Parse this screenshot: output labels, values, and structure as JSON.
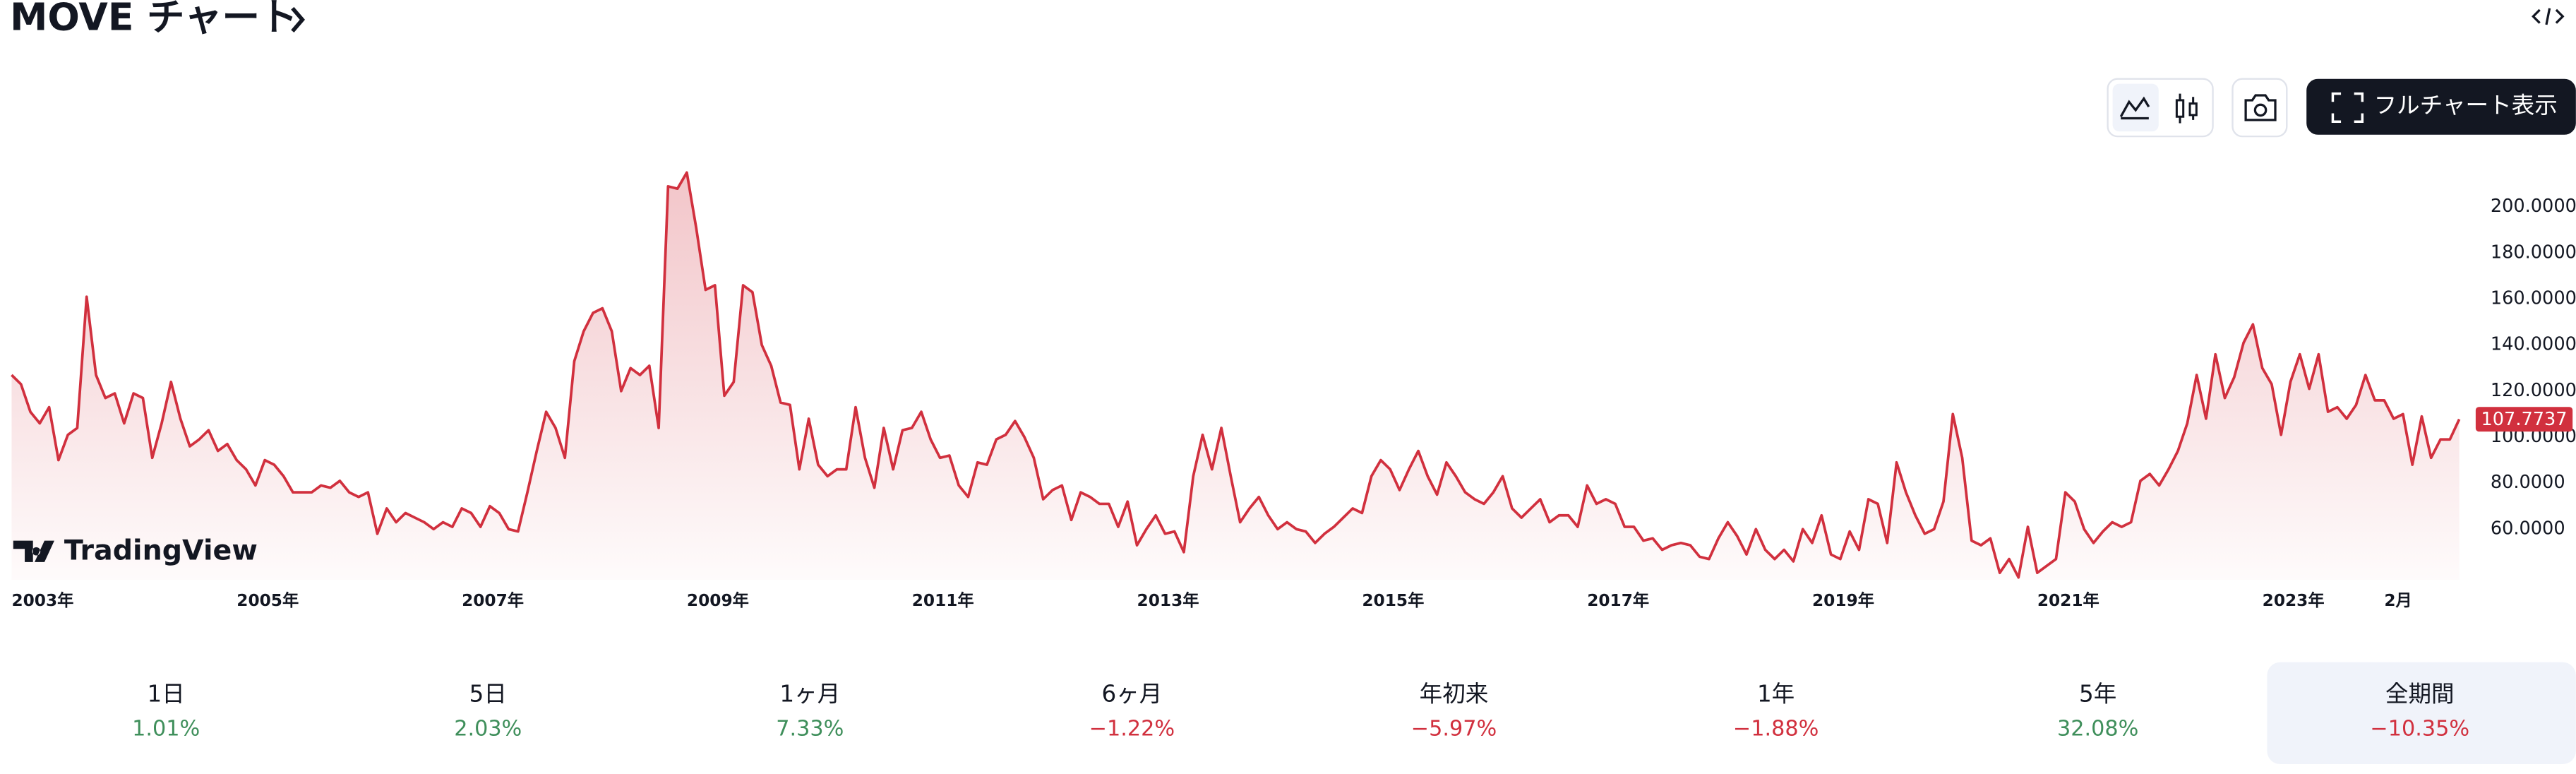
{
  "header": {
    "title": "MOVE チャート",
    "full_chart_button": "フルチャート表示",
    "logo": "TradingView"
  },
  "chart_data": {
    "type": "area",
    "categories": [
      "2003年",
      null,
      null,
      null,
      null,
      null,
      null,
      null,
      null,
      null,
      null,
      null,
      null,
      null,
      null,
      null,
      null,
      null,
      null,
      null,
      null,
      null,
      null,
      null,
      "2005年",
      null,
      null,
      null,
      null,
      null,
      null,
      null,
      null,
      null,
      null,
      null,
      null,
      null,
      null,
      null,
      null,
      null,
      null,
      null,
      null,
      null,
      null,
      null,
      "2007年",
      null,
      null,
      null,
      null,
      null,
      null,
      null,
      null,
      null,
      null,
      null,
      null,
      null,
      null,
      null,
      null,
      null,
      null,
      null,
      null,
      null,
      null,
      null,
      "2009年",
      null,
      null,
      null,
      null,
      null,
      null,
      null,
      null,
      null,
      null,
      null,
      null,
      null,
      null,
      null,
      null,
      null,
      null,
      null,
      null,
      null,
      null,
      null,
      "2011年",
      null,
      null,
      null,
      null,
      null,
      null,
      null,
      null,
      null,
      null,
      null,
      null,
      null,
      null,
      null,
      null,
      null,
      null,
      null,
      null,
      null,
      null,
      null,
      "2013年",
      null,
      null,
      null,
      null,
      null,
      null,
      null,
      null,
      null,
      null,
      null,
      null,
      null,
      null,
      null,
      null,
      null,
      null,
      null,
      null,
      null,
      null,
      null,
      "2015年",
      null,
      null,
      null,
      null,
      null,
      null,
      null,
      null,
      null,
      null,
      null,
      null,
      null,
      null,
      null,
      null,
      null,
      null,
      null,
      null,
      null,
      null,
      null,
      "2017年",
      null,
      null,
      null,
      null,
      null,
      null,
      null,
      null,
      null,
      null,
      null,
      null,
      null,
      null,
      null,
      null,
      null,
      null,
      null,
      null,
      null,
      null,
      null,
      "2019年",
      null,
      null,
      null,
      null,
      null,
      null,
      null,
      null,
      null,
      null,
      null,
      null,
      null,
      null,
      null,
      null,
      null,
      null,
      null,
      null,
      null,
      null,
      null,
      "2021年",
      null,
      null,
      null,
      null,
      null,
      null,
      null,
      null,
      null,
      null,
      null,
      null,
      null,
      null,
      null,
      null,
      null,
      null,
      null,
      null,
      null,
      null,
      null,
      "2023年",
      null,
      null,
      null,
      null,
      null,
      null,
      null,
      null,
      null,
      null,
      null,
      null,
      "2月",
      null,
      null,
      null,
      null,
      null,
      null,
      null,
      null
    ],
    "series": [
      {
        "color": "#d1303e",
        "values": [
          127,
          123,
          111,
          106,
          113,
          90,
          101,
          104,
          161,
          127,
          117,
          119,
          106,
          119,
          117,
          91,
          106,
          124,
          108,
          96,
          99,
          103,
          94,
          97,
          90,
          86,
          79,
          90,
          88,
          83,
          76,
          76,
          76,
          79,
          78,
          81,
          76,
          74,
          76,
          58,
          69,
          63,
          67,
          65,
          63,
          60,
          63,
          61,
          69,
          67,
          61,
          70,
          67,
          60,
          59,
          76,
          94,
          111,
          104,
          91,
          133,
          146,
          154,
          156,
          146,
          120,
          130,
          127,
          131,
          104,
          209,
          208,
          215,
          191,
          164,
          166,
          118,
          124,
          166,
          163,
          140,
          131,
          115,
          114,
          86,
          108,
          88,
          83,
          86,
          86,
          113,
          91,
          78,
          104,
          86,
          103,
          104,
          111,
          99,
          91,
          92,
          79,
          74,
          89,
          88,
          99,
          101,
          107,
          100,
          91,
          73,
          77,
          79,
          64,
          76,
          74,
          71,
          71,
          61,
          72,
          53,
          60,
          66,
          58,
          59,
          50,
          83,
          101,
          86,
          104,
          83,
          63,
          69,
          74,
          66,
          60,
          63,
          60,
          59,
          54,
          58,
          61,
          65,
          69,
          67,
          83,
          90,
          86,
          77,
          86,
          94,
          83,
          75,
          89,
          83,
          76,
          73,
          71,
          76,
          83,
          69,
          65,
          69,
          73,
          63,
          66,
          66,
          61,
          79,
          71,
          73,
          71,
          61,
          61,
          55,
          56,
          51,
          53,
          54,
          53,
          48,
          47,
          56,
          63,
          57,
          49,
          60,
          51,
          47,
          51,
          46,
          60,
          54,
          66,
          49,
          47,
          59,
          51,
          73,
          71,
          54,
          89,
          76,
          66,
          58,
          60,
          72,
          110,
          91,
          55,
          53,
          56,
          41,
          47,
          39,
          61,
          41,
          44,
          47,
          76,
          72,
          60,
          54,
          59,
          63,
          61,
          63,
          81,
          84,
          79,
          86,
          94,
          106,
          127,
          108,
          136,
          117,
          126,
          141,
          149,
          130,
          123,
          101,
          124,
          136,
          121,
          136,
          111,
          113,
          108,
          114,
          127,
          116,
          116,
          108,
          110,
          88,
          109,
          91,
          99,
          99,
          107.7737
        ]
      }
    ],
    "ylim": [
      38,
      222
    ],
    "yticks": [
      {
        "value": 60,
        "label": "60.0000"
      },
      {
        "value": 80,
        "label": "80.0000"
      },
      {
        "value": 100,
        "label": "100.0000"
      },
      {
        "value": 120,
        "label": "120.0000"
      },
      {
        "value": 140,
        "label": "140.0000"
      },
      {
        "value": 160,
        "label": "160.0000"
      },
      {
        "value": 180,
        "label": "180.0000"
      },
      {
        "value": 200,
        "label": "200.0000"
      }
    ],
    "grid": false
  },
  "performance": [
    {
      "period": "1日",
      "change": "1.01%"
    },
    {
      "period": "5日",
      "change": "2.03%"
    },
    {
      "period": "1ヶ月",
      "change": "7.33%"
    },
    {
      "period": "6ヶ月",
      "change": "−1.22%"
    },
    {
      "period": "年初来",
      "change": "−5.97%"
    },
    {
      "period": "1年",
      "change": "−1.88%"
    },
    {
      "period": "5年",
      "change": "32.08%"
    },
    {
      "period": "全期間",
      "change": "−10.35%",
      "selected": true
    }
  ]
}
